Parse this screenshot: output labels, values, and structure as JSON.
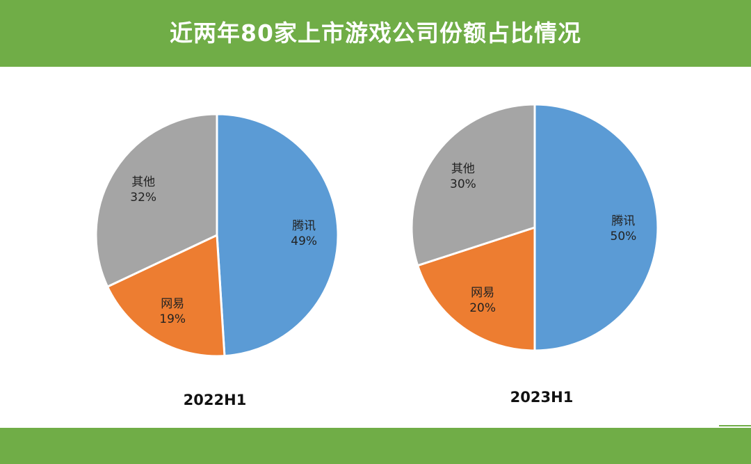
{
  "title": "近两年80家上市游戏公司份额占比情况",
  "colors": {
    "band": "#70ad47",
    "tencent": "#5b9bd5",
    "netease": "#ed7d31",
    "other": "#a5a5a5"
  },
  "chart_data": [
    {
      "type": "pie",
      "caption": "2022H1",
      "slices": [
        {
          "name": "腾讯",
          "value": 49,
          "label": "49%",
          "color": "#5b9bd5"
        },
        {
          "name": "网易",
          "value": 19,
          "label": "19%",
          "color": "#ed7d31"
        },
        {
          "name": "其他",
          "value": 32,
          "label": "32%",
          "color": "#a5a5a5"
        }
      ]
    },
    {
      "type": "pie",
      "caption": "2023H1",
      "slices": [
        {
          "name": "腾讯",
          "value": 50,
          "label": "50%",
          "color": "#5b9bd5"
        },
        {
          "name": "网易",
          "value": 20,
          "label": "20%",
          "color": "#ed7d31"
        },
        {
          "name": "其他",
          "value": 30,
          "label": "30%",
          "color": "#a5a5a5"
        }
      ]
    }
  ]
}
